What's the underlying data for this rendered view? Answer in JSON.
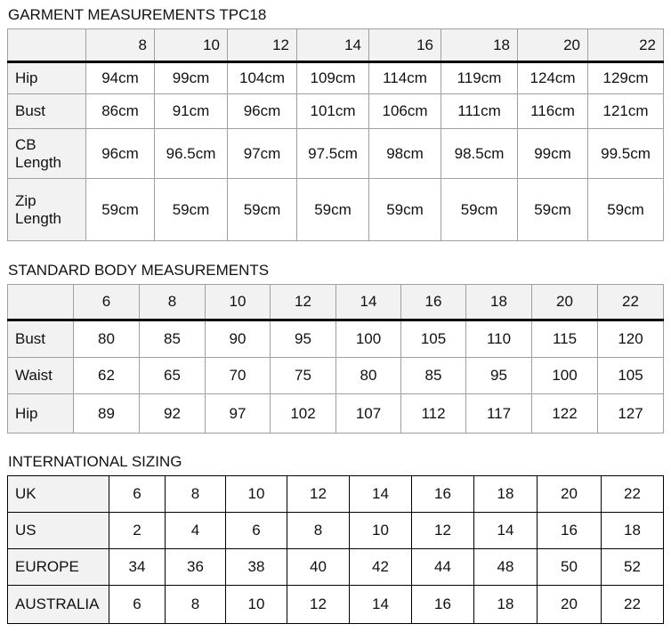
{
  "garment": {
    "title": "GARMENT MEASUREMENTS TPC18",
    "sizes": [
      "8",
      "10",
      "12",
      "14",
      "16",
      "18",
      "20",
      "22"
    ],
    "rows": [
      {
        "label": "Hip",
        "values": [
          "94cm",
          "99cm",
          "104cm",
          "109cm",
          "114cm",
          "119cm",
          "124cm",
          "129cm"
        ]
      },
      {
        "label": "Bust",
        "values": [
          "86cm",
          "91cm",
          "96cm",
          "101cm",
          "106cm",
          "111cm",
          "116cm",
          "121cm"
        ]
      },
      {
        "label": "CB Length",
        "values": [
          "96cm",
          "96.5cm",
          "97cm",
          "97.5cm",
          "98cm",
          "98.5cm",
          "99cm",
          "99.5cm"
        ]
      },
      {
        "label": "Zip Length",
        "values": [
          "59cm",
          "59cm",
          "59cm",
          "59cm",
          "59cm",
          "59cm",
          "59cm",
          "59cm"
        ]
      }
    ]
  },
  "body": {
    "title": "STANDARD BODY MEASUREMENTS",
    "sizes": [
      "6",
      "8",
      "10",
      "12",
      "14",
      "16",
      "18",
      "20",
      "22"
    ],
    "rows": [
      {
        "label": "Bust",
        "values": [
          "80",
          "85",
          "90",
          "95",
          "100",
          "105",
          "110",
          "115",
          "120"
        ]
      },
      {
        "label": "Waist",
        "values": [
          "62",
          "65",
          "70",
          "75",
          "80",
          "85",
          "95",
          "100",
          "105"
        ]
      },
      {
        "label": "Hip",
        "values": [
          "89",
          "92",
          "97",
          "102",
          "107",
          "112",
          "117",
          "122",
          "127"
        ]
      }
    ]
  },
  "intl": {
    "title": "INTERNATIONAL SIZING",
    "rows": [
      {
        "label": "UK",
        "values": [
          "6",
          "8",
          "10",
          "12",
          "14",
          "16",
          "18",
          "20",
          "22"
        ]
      },
      {
        "label": "US",
        "values": [
          "2",
          "4",
          "6",
          "8",
          "10",
          "12",
          "14",
          "16",
          "18"
        ]
      },
      {
        "label": "EUROPE",
        "values": [
          "34",
          "36",
          "38",
          "40",
          "42",
          "44",
          "48",
          "50",
          "52"
        ]
      },
      {
        "label": "AUSTRALIA",
        "values": [
          "6",
          "8",
          "10",
          "12",
          "14",
          "16",
          "18",
          "20",
          "22"
        ]
      }
    ]
  }
}
